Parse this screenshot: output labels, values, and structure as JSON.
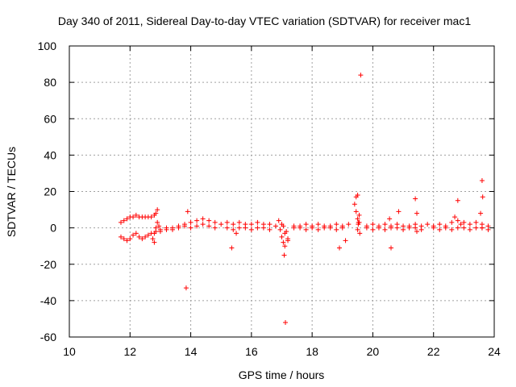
{
  "chart_data": {
    "type": "scatter",
    "title": "Day 340 of 2011, Sidereal Day-to-day VTEC variation (SDTVAR) for receiver mac1",
    "xlabel": "GPS time / hours",
    "ylabel": "SDTVAR / TECUs",
    "xlim": [
      10,
      24
    ],
    "ylim": [
      -60,
      100
    ],
    "xticks": [
      10,
      12,
      14,
      16,
      18,
      20,
      22,
      24
    ],
    "yticks": [
      -60,
      -40,
      -20,
      0,
      20,
      40,
      60,
      80,
      100
    ],
    "xtick_labels": [
      "10",
      "12",
      "14",
      "16",
      "18",
      "20",
      "22",
      "24"
    ],
    "ytick_labels": [
      "-60",
      "-40",
      "-20",
      "0",
      "20",
      "40",
      "60",
      "80",
      "100"
    ],
    "grid": true,
    "marker": "+",
    "color": "#ff0000",
    "series": [
      {
        "name": "SDTVAR",
        "x": [
          11.7,
          11.8,
          11.9,
          12.0,
          12.1,
          12.2,
          12.3,
          12.4,
          12.5,
          12.6,
          12.7,
          12.8,
          12.85,
          12.9,
          11.7,
          11.8,
          11.9,
          12.0,
          12.1,
          12.2,
          12.3,
          12.4,
          12.5,
          12.6,
          12.7,
          12.8,
          12.85,
          12.8,
          12.9,
          12.95,
          12.85,
          12.75,
          13.0,
          13.2,
          13.4,
          13.6,
          13.8,
          14.0,
          14.2,
          14.4,
          14.6,
          14.8,
          15.0,
          13.0,
          13.2,
          13.4,
          13.6,
          13.8,
          14.0,
          14.2,
          14.4,
          14.6,
          14.8,
          13.85,
          13.9,
          15.2,
          15.4,
          15.6,
          15.8,
          16.0,
          16.2,
          16.4,
          16.6,
          16.8,
          15.2,
          15.4,
          15.6,
          15.8,
          16.0,
          16.2,
          16.4,
          16.6,
          15.35,
          15.5,
          16.9,
          17.0,
          17.05,
          17.1,
          17.15,
          17.2,
          17.0,
          17.1,
          16.95,
          17.05,
          17.12,
          17.08,
          17.2,
          17.4,
          17.6,
          17.8,
          18.0,
          18.2,
          18.4,
          18.6,
          18.8,
          19.0,
          19.2,
          17.4,
          17.6,
          17.8,
          18.0,
          18.2,
          18.4,
          18.6,
          18.8,
          19.0,
          18.9,
          19.1,
          19.4,
          19.45,
          19.5,
          19.55,
          19.6,
          19.5,
          19.55,
          19.45,
          19.52,
          19.57,
          19.5,
          19.53,
          19.8,
          20.0,
          20.2,
          20.4,
          20.6,
          20.8,
          21.0,
          21.2,
          21.4,
          21.6,
          21.8,
          19.8,
          20.0,
          20.2,
          20.4,
          20.6,
          20.8,
          21.0,
          21.2,
          21.4,
          21.6,
          20.55,
          20.6,
          20.85,
          21.4,
          21.45,
          21.45,
          22.0,
          22.2,
          22.4,
          22.6,
          22.7,
          22.8,
          22.9,
          23.0,
          23.2,
          23.4,
          23.6,
          23.8,
          22.0,
          22.2,
          22.4,
          22.6,
          22.8,
          23.0,
          23.2,
          23.4,
          23.6,
          23.8,
          22.8,
          23.55,
          23.6,
          23.62,
          23.6
        ],
        "y": [
          3,
          4,
          5,
          6,
          6,
          7,
          6,
          6,
          6,
          6,
          6,
          7,
          8,
          10,
          -5,
          -6,
          -7,
          -6,
          -4,
          -3,
          -5,
          -6,
          -5,
          -4,
          -3,
          -3,
          -2,
          -8,
          3,
          1,
          0,
          -6,
          -2,
          -1,
          0,
          1,
          2,
          3,
          4,
          5,
          4,
          3,
          2,
          -1,
          0,
          -1,
          0,
          1,
          0,
          1,
          2,
          1,
          0,
          -33,
          9,
          3,
          2,
          3,
          2,
          2,
          3,
          2,
          2,
          1,
          0,
          -1,
          0,
          0,
          -1,
          0,
          0,
          -1,
          -11,
          -3,
          4,
          -5,
          -8,
          -10,
          -2,
          -7,
          2,
          -3,
          -1,
          1,
          -52,
          -15,
          -6,
          1,
          1,
          2,
          1,
          2,
          1,
          1,
          2,
          1,
          2,
          0,
          0,
          -1,
          0,
          -1,
          0,
          0,
          -1,
          0,
          -11,
          -7,
          13,
          17,
          18,
          7,
          84,
          5,
          3,
          9,
          2,
          -3,
          -1,
          3,
          1,
          2,
          1,
          2,
          1,
          2,
          1,
          1,
          2,
          1,
          2,
          0,
          -1,
          0,
          -1,
          0,
          0,
          -1,
          0,
          0,
          -1,
          5,
          -11,
          9,
          16,
          8,
          -2,
          1,
          2,
          1,
          3,
          6,
          4,
          2,
          3,
          2,
          3,
          2,
          1,
          0,
          -1,
          0,
          -1,
          0,
          0,
          -1,
          0,
          0,
          -1,
          15,
          8,
          26,
          17,
          0
        ]
      }
    ]
  }
}
